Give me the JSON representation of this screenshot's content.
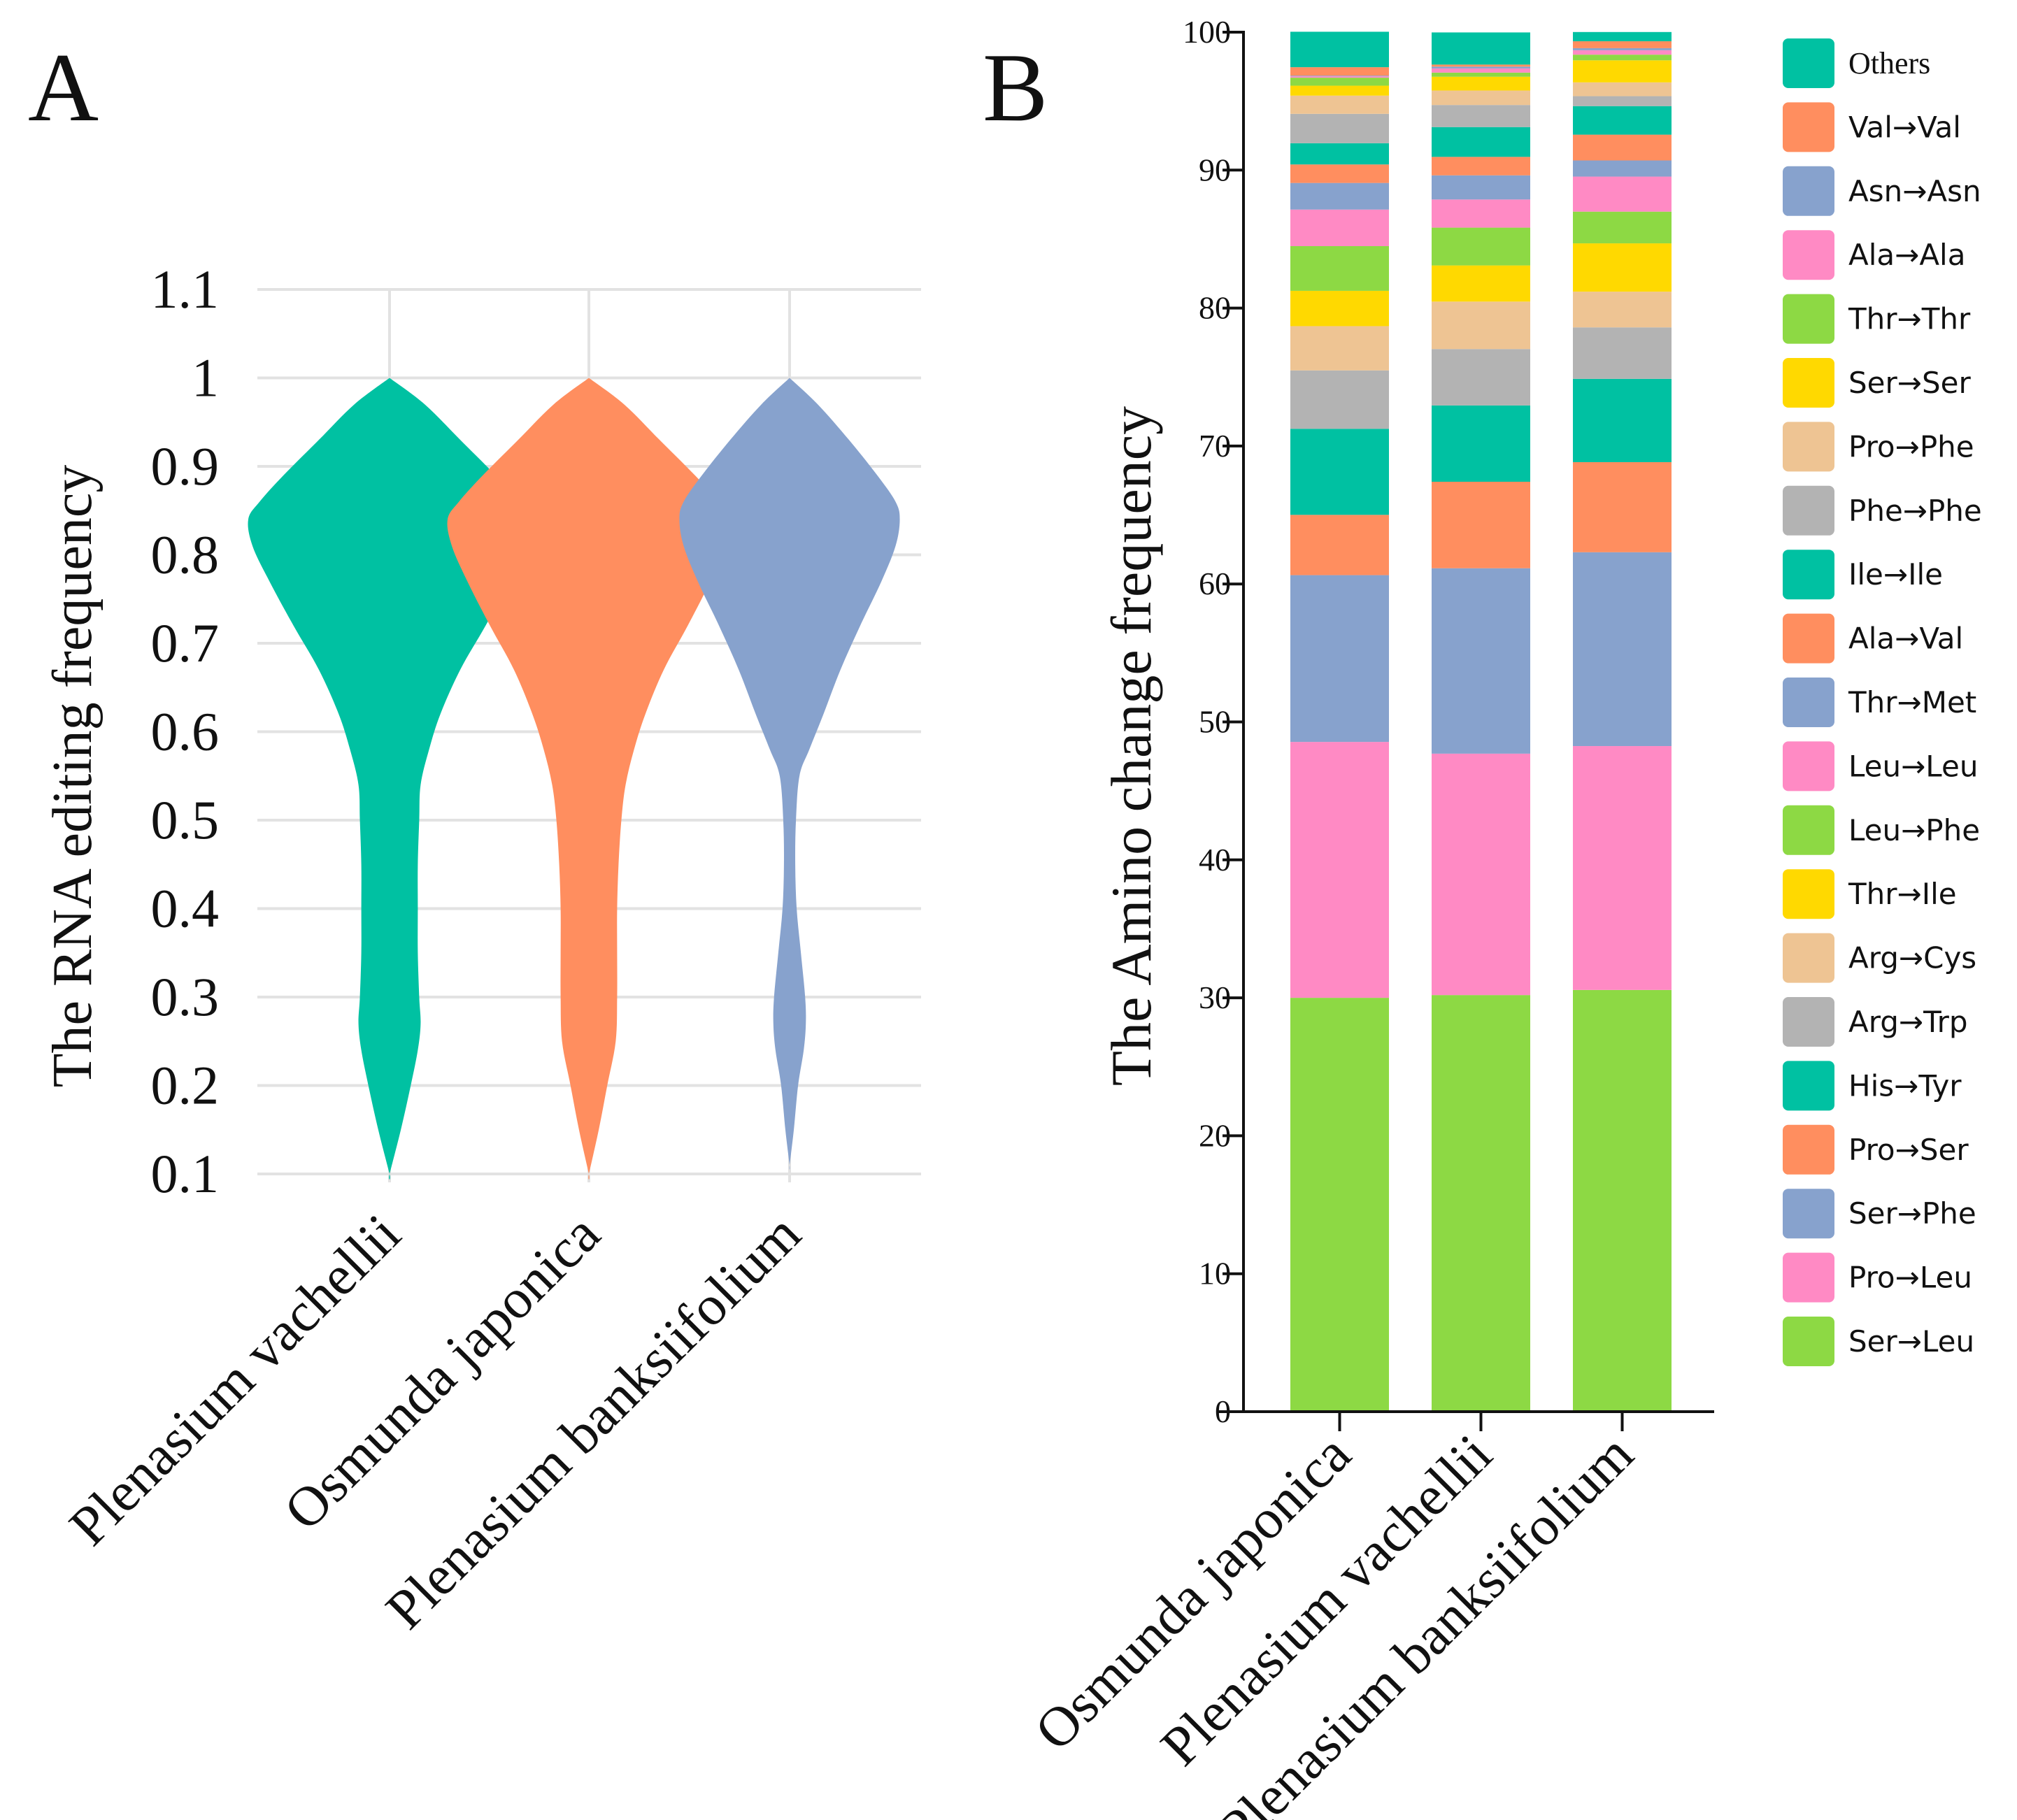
{
  "panel_labels": {
    "a": "A",
    "b": "B"
  },
  "chart_data": [
    {
      "type": "violin",
      "panel": "A",
      "ylabel": "The RNA editing frequency",
      "ylim": [
        0.1,
        1.1
      ],
      "yticks": [
        "0.1",
        "0.2",
        "0.3",
        "0.4",
        "0.5",
        "0.6",
        "0.7",
        "0.8",
        "0.9",
        "1",
        "1.1"
      ],
      "grid": true,
      "categories": [
        "Plenasium vachellii",
        "Osmunda japonica",
        "Plenasium banksiifolium"
      ],
      "colors": [
        "#00C1A2",
        "#FF8E5F",
        "#87A2CD"
      ],
      "density_profiles": [
        [
          [
            1.0,
            0
          ],
          [
            0.97,
            0.25
          ],
          [
            0.93,
            0.5
          ],
          [
            0.89,
            0.75
          ],
          [
            0.86,
            0.92
          ],
          [
            0.84,
            1.0
          ],
          [
            0.81,
            0.97
          ],
          [
            0.77,
            0.85
          ],
          [
            0.72,
            0.68
          ],
          [
            0.67,
            0.5
          ],
          [
            0.62,
            0.36
          ],
          [
            0.58,
            0.28
          ],
          [
            0.54,
            0.22
          ],
          [
            0.5,
            0.21
          ],
          [
            0.45,
            0.2
          ],
          [
            0.4,
            0.2
          ],
          [
            0.35,
            0.2
          ],
          [
            0.3,
            0.21
          ],
          [
            0.27,
            0.22
          ],
          [
            0.24,
            0.2
          ],
          [
            0.2,
            0.15
          ],
          [
            0.15,
            0.08
          ],
          [
            0.1,
            0
          ]
        ],
        [
          [
            1.0,
            0
          ],
          [
            0.97,
            0.25
          ],
          [
            0.93,
            0.5
          ],
          [
            0.89,
            0.75
          ],
          [
            0.86,
            0.92
          ],
          [
            0.84,
            1.0
          ],
          [
            0.81,
            0.97
          ],
          [
            0.77,
            0.86
          ],
          [
            0.72,
            0.7
          ],
          [
            0.67,
            0.53
          ],
          [
            0.62,
            0.4
          ],
          [
            0.58,
            0.32
          ],
          [
            0.54,
            0.26
          ],
          [
            0.5,
            0.23
          ],
          [
            0.45,
            0.21
          ],
          [
            0.4,
            0.2
          ],
          [
            0.35,
            0.2
          ],
          [
            0.3,
            0.2
          ],
          [
            0.25,
            0.19
          ],
          [
            0.2,
            0.13
          ],
          [
            0.15,
            0.07
          ],
          [
            0.1,
            0
          ]
        ],
        [
          [
            1.0,
            0
          ],
          [
            0.97,
            0.2
          ],
          [
            0.93,
            0.42
          ],
          [
            0.89,
            0.62
          ],
          [
            0.86,
            0.75
          ],
          [
            0.84,
            0.78
          ],
          [
            0.81,
            0.75
          ],
          [
            0.77,
            0.65
          ],
          [
            0.72,
            0.5
          ],
          [
            0.67,
            0.36
          ],
          [
            0.62,
            0.24
          ],
          [
            0.58,
            0.14
          ],
          [
            0.55,
            0.07
          ],
          [
            0.5,
            0.045
          ],
          [
            0.45,
            0.04
          ],
          [
            0.4,
            0.05
          ],
          [
            0.35,
            0.08
          ],
          [
            0.3,
            0.11
          ],
          [
            0.27,
            0.115
          ],
          [
            0.24,
            0.1
          ],
          [
            0.2,
            0.06
          ],
          [
            0.15,
            0.03
          ],
          [
            0.11,
            0
          ]
        ]
      ]
    },
    {
      "type": "bar",
      "stacked": true,
      "panel": "B",
      "ylabel": "The Amino change frequency",
      "ylim": [
        0,
        100
      ],
      "yticks": [
        "0",
        "10",
        "20",
        "30",
        "40",
        "50",
        "60",
        "70",
        "80",
        "90",
        "100"
      ],
      "categories": [
        "Osmunda japonica",
        "Plenasium vachellii",
        "Plenasium banksiifolium"
      ],
      "legend_position": "right",
      "series": [
        {
          "name": "Ser→Leu",
          "color": "#8DD944",
          "values": [
            30.0,
            30.2,
            30.57
          ]
        },
        {
          "name": "Pro→Leu",
          "color": "#FF8AC4",
          "values": [
            18.55,
            17.5,
            17.68
          ]
        },
        {
          "name": "Ser→Phe",
          "color": "#87A2CD",
          "values": [
            12.09,
            13.44,
            14.05
          ]
        },
        {
          "name": "Pro→Ser",
          "color": "#FF8E5F",
          "values": [
            4.37,
            6.27,
            6.53
          ]
        },
        {
          "name": "His→Tyr",
          "color": "#00C1A2",
          "values": [
            6.24,
            5.53,
            6.04
          ]
        },
        {
          "name": "Arg→Trp",
          "color": "#B3B3B3",
          "values": [
            4.23,
            4.09,
            3.73
          ]
        },
        {
          "name": "Arg→Cys",
          "color": "#EEC493",
          "values": [
            3.21,
            3.44,
            2.59
          ]
        },
        {
          "name": "Thr→Ile",
          "color": "#FFD900",
          "values": [
            2.56,
            2.62,
            3.5
          ]
        },
        {
          "name": "Leu→Phe",
          "color": "#8DD944",
          "values": [
            3.24,
            2.74,
            2.3
          ]
        },
        {
          "name": "Leu→Leu",
          "color": "#FF8AC4",
          "values": [
            2.65,
            2.04,
            2.54
          ]
        },
        {
          "name": "Thr→Met",
          "color": "#87A2CD",
          "values": [
            1.93,
            1.75,
            1.17
          ]
        },
        {
          "name": "Ala→Val",
          "color": "#FF8E5F",
          "values": [
            1.34,
            1.34,
            1.87
          ]
        },
        {
          "name": "Ile→Ile",
          "color": "#00C1A2",
          "values": [
            1.54,
            2.16,
            2.07
          ]
        },
        {
          "name": "Phe→Phe",
          "color": "#B3B3B3",
          "values": [
            2.13,
            1.6,
            0.72
          ]
        },
        {
          "name": "Pro→Phe",
          "color": "#EEC493",
          "values": [
            1.32,
            1.05,
            1.0
          ]
        },
        {
          "name": "Ser→Ser",
          "color": "#FFD900",
          "values": [
            0.72,
            1.0,
            1.6
          ]
        },
        {
          "name": "Thr→Thr",
          "color": "#8DD944",
          "values": [
            0.58,
            0.3,
            0.41
          ]
        },
        {
          "name": "Ala→Ala",
          "color": "#FF8AC4",
          "values": [
            0.1,
            0.3,
            0.32
          ]
        },
        {
          "name": "Asn→Asn",
          "color": "#87A2CD",
          "values": [
            0.05,
            0.13,
            0.15
          ]
        },
        {
          "name": "Val→Val",
          "color": "#FF8E5F",
          "values": [
            0.61,
            0.15,
            0.5
          ]
        },
        {
          "name": "Others",
          "color": "#00C1A2",
          "values": [
            2.57,
            2.33,
            0.67
          ]
        }
      ]
    }
  ]
}
